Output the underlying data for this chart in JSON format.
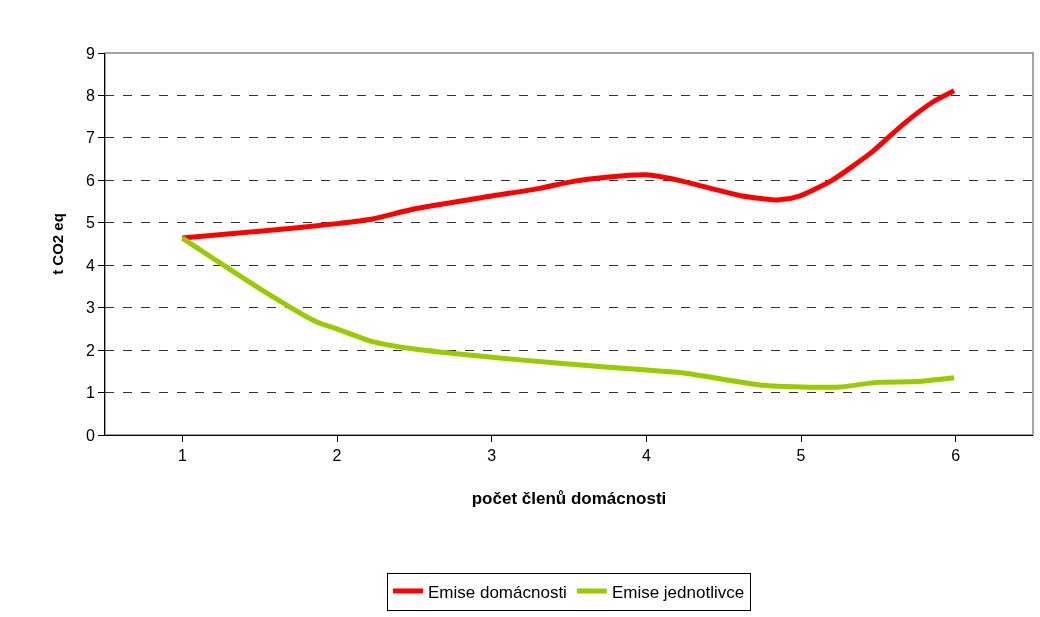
{
  "chart_data": {
    "type": "line",
    "xlabel": "počet členů domácnosti",
    "ylabel": "t CO2 eq",
    "xlim": [
      0.5,
      6.5
    ],
    "xticks": [
      1,
      2,
      3,
      4,
      5,
      6
    ],
    "ylim": [
      0,
      9
    ],
    "yticks": [
      0,
      1,
      2,
      3,
      4,
      5,
      6,
      7,
      8,
      9
    ],
    "grid": "y",
    "legend": "bottom",
    "line_style": "solid",
    "marker": "none",
    "series": [
      {
        "name": "Emise domácnosti",
        "color": "#ff0000",
        "x": [
          1,
          1.5,
          2,
          2.23,
          2.49,
          3,
          3.31,
          3.52,
          3.76,
          4,
          4.21,
          4.62,
          4.86,
          4.99,
          5.2,
          5.46,
          5.66,
          5.85,
          5.99
        ],
        "values": [
          4.64,
          4.8,
          4.98,
          5.09,
          5.32,
          5.63,
          5.81,
          5.97,
          6.08,
          6.13,
          6.0,
          5.63,
          5.54,
          5.63,
          6.0,
          6.67,
          7.32,
          7.84,
          8.11
        ]
      },
      {
        "name": "Emise jednotlivce",
        "color": "#99cc00",
        "x": [
          1,
          1.5,
          1.87,
          2,
          2.23,
          2.49,
          3,
          3.44,
          4,
          4.24,
          4.75,
          5.01,
          5.25,
          5.49,
          5.75,
          5.99
        ],
        "values": [
          4.64,
          3.45,
          2.66,
          2.5,
          2.2,
          2.03,
          1.83,
          1.69,
          1.53,
          1.46,
          1.17,
          1.13,
          1.13,
          1.24,
          1.26,
          1.35
        ]
      }
    ]
  }
}
